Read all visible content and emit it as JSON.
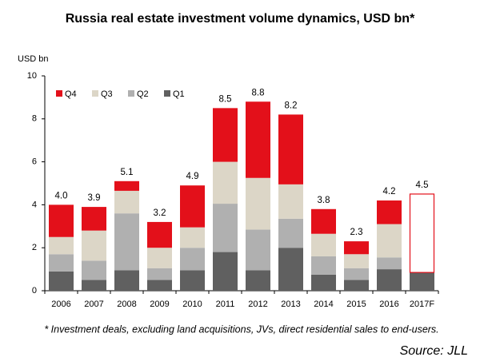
{
  "chart_data": {
    "type": "stacked_bar",
    "title": "Russia real estate investment volume dynamics, USD bn*",
    "y_axis_label": "USD bn",
    "categories": [
      "2006",
      "2007",
      "2008",
      "2009",
      "2010",
      "2011",
      "2012",
      "2013",
      "2014",
      "2015",
      "2016",
      "2017F"
    ],
    "series": [
      {
        "name": "Q1",
        "color": "#606060",
        "values": [
          0.9,
          0.5,
          0.95,
          0.5,
          0.95,
          1.8,
          0.95,
          2.0,
          0.75,
          0.5,
          1.0,
          0.85
        ]
      },
      {
        "name": "Q2",
        "color": "#b0b0b0",
        "values": [
          0.8,
          0.9,
          2.65,
          0.55,
          1.05,
          2.25,
          1.9,
          1.35,
          0.85,
          0.55,
          0.55,
          null
        ]
      },
      {
        "name": "Q3",
        "color": "#dcd6c7",
        "values": [
          0.8,
          1.4,
          1.05,
          0.95,
          0.95,
          1.95,
          2.4,
          1.6,
          1.05,
          0.65,
          1.55,
          null
        ]
      },
      {
        "name": "Q4",
        "color": "#e3101a",
        "values": [
          1.5,
          1.1,
          0.45,
          1.2,
          1.95,
          2.5,
          3.55,
          3.25,
          1.15,
          0.6,
          1.1,
          3.65
        ]
      }
    ],
    "totals": {
      "values": [
        4,
        3.9,
        5.1,
        3.2,
        4.9,
        8.5,
        8.8,
        8.2,
        3.8,
        2.3,
        4.2,
        4.5
      ],
      "value_labels": [
        "4.0",
        "3.9",
        "5.1",
        "3.2",
        "4.9",
        "8.5",
        "8.8",
        "8.2",
        "3.8",
        "2.3",
        "4.2",
        "4.5"
      ]
    },
    "forecast": "2017F",
    "ylim": [
      0,
      10
    ],
    "yticks": [
      0,
      2,
      4,
      6,
      8,
      10
    ],
    "legend": "top-left",
    "footnote": "* Investment deals, excluding land acquisitions, JVs, direct residential sales to end-users.",
    "source": "Source: JLL"
  }
}
